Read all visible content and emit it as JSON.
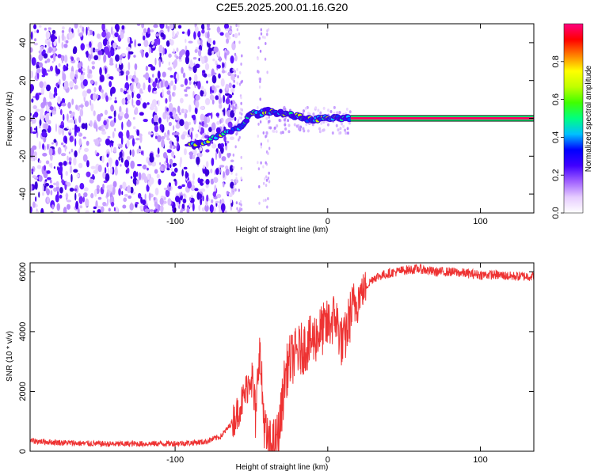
{
  "title": "C2E5.2025.200.01.16.G20",
  "chart_data": [
    {
      "type": "heatmap",
      "title": "C2E5.2025.200.01.16.G20",
      "xlabel": "Height of straight line (km)",
      "ylabel": "Frequency (Hz)",
      "xlim": [
        -195,
        135
      ],
      "ylim": [
        -50,
        50
      ],
      "x_ticks": [
        -100,
        0,
        100
      ],
      "y_ticks": [
        -40,
        -20,
        0,
        20,
        40
      ],
      "x_tick_labels": [
        "-100",
        "0",
        "100"
      ],
      "y_tick_labels": [
        "-40",
        "-20",
        "0",
        "20",
        "40"
      ],
      "colorbar": {
        "label": "Normalized spectral amplitude",
        "range": [
          0,
          1
        ],
        "ticks": [
          0,
          0.2,
          0.4,
          0.6,
          0.8
        ],
        "tick_labels": [
          "0.0",
          "0.2",
          "0.4",
          "0.6",
          "0.8"
        ],
        "colors": [
          "#ffffff",
          "#e6ccff",
          "#a060ff",
          "#4000ff",
          "#0000ff",
          "#00c0ff",
          "#00ff80",
          "#40ff00",
          "#c0ff00",
          "#ffff00",
          "#ff8000",
          "#ff0000",
          "#ff0080"
        ]
      },
      "ridge": {
        "x": [
          -90,
          -80,
          -70,
          -60,
          -55,
          -50,
          -45,
          -40,
          -35,
          -30,
          -25,
          -20,
          -15,
          -10,
          -5,
          0,
          5,
          10,
          15,
          135
        ],
        "y": [
          -14,
          -12,
          -9,
          -6,
          -3,
          3,
          2,
          4,
          3,
          3,
          2,
          1,
          0,
          -1,
          0,
          0,
          0,
          0,
          0,
          0
        ]
      },
      "strong_band": {
        "x_start": 15,
        "x_end": 135,
        "frequency": 0
      }
    },
    {
      "type": "line",
      "xlabel": "Height of straight line (km)",
      "ylabel": "SNR (10 * v/v)",
      "xlim": [
        -195,
        135
      ],
      "ylim": [
        0,
        6300
      ],
      "x_ticks": [
        -100,
        0,
        100
      ],
      "y_ticks": [
        0,
        2000,
        4000,
        6000
      ],
      "x_tick_labels": [
        "-100",
        "0",
        "100"
      ],
      "y_tick_labels": [
        "0",
        "2000",
        "4000",
        "6000"
      ],
      "color": "#ee3333",
      "x": [
        -195,
        -180,
        -160,
        -140,
        -120,
        -100,
        -90,
        -80,
        -70,
        -65,
        -60,
        -55,
        -50,
        -47,
        -45,
        -42,
        -40,
        -38,
        -36,
        -34,
        -32,
        -30,
        -28,
        -25,
        -20,
        -15,
        -10,
        -5,
        0,
        5,
        10,
        15,
        20,
        25,
        30,
        40,
        50,
        60,
        70,
        80,
        90,
        100,
        110,
        120,
        135
      ],
      "y": [
        350,
        300,
        260,
        240,
        250,
        260,
        280,
        320,
        500,
        800,
        1200,
        1800,
        2600,
        1000,
        3600,
        1200,
        300,
        200,
        200,
        300,
        600,
        1500,
        2500,
        3000,
        3300,
        3500,
        3700,
        4000,
        4200,
        4500,
        3500,
        4600,
        5200,
        5500,
        5800,
        5950,
        6050,
        6100,
        6000,
        6000,
        5950,
        5900,
        5900,
        5850,
        5850
      ]
    }
  ]
}
